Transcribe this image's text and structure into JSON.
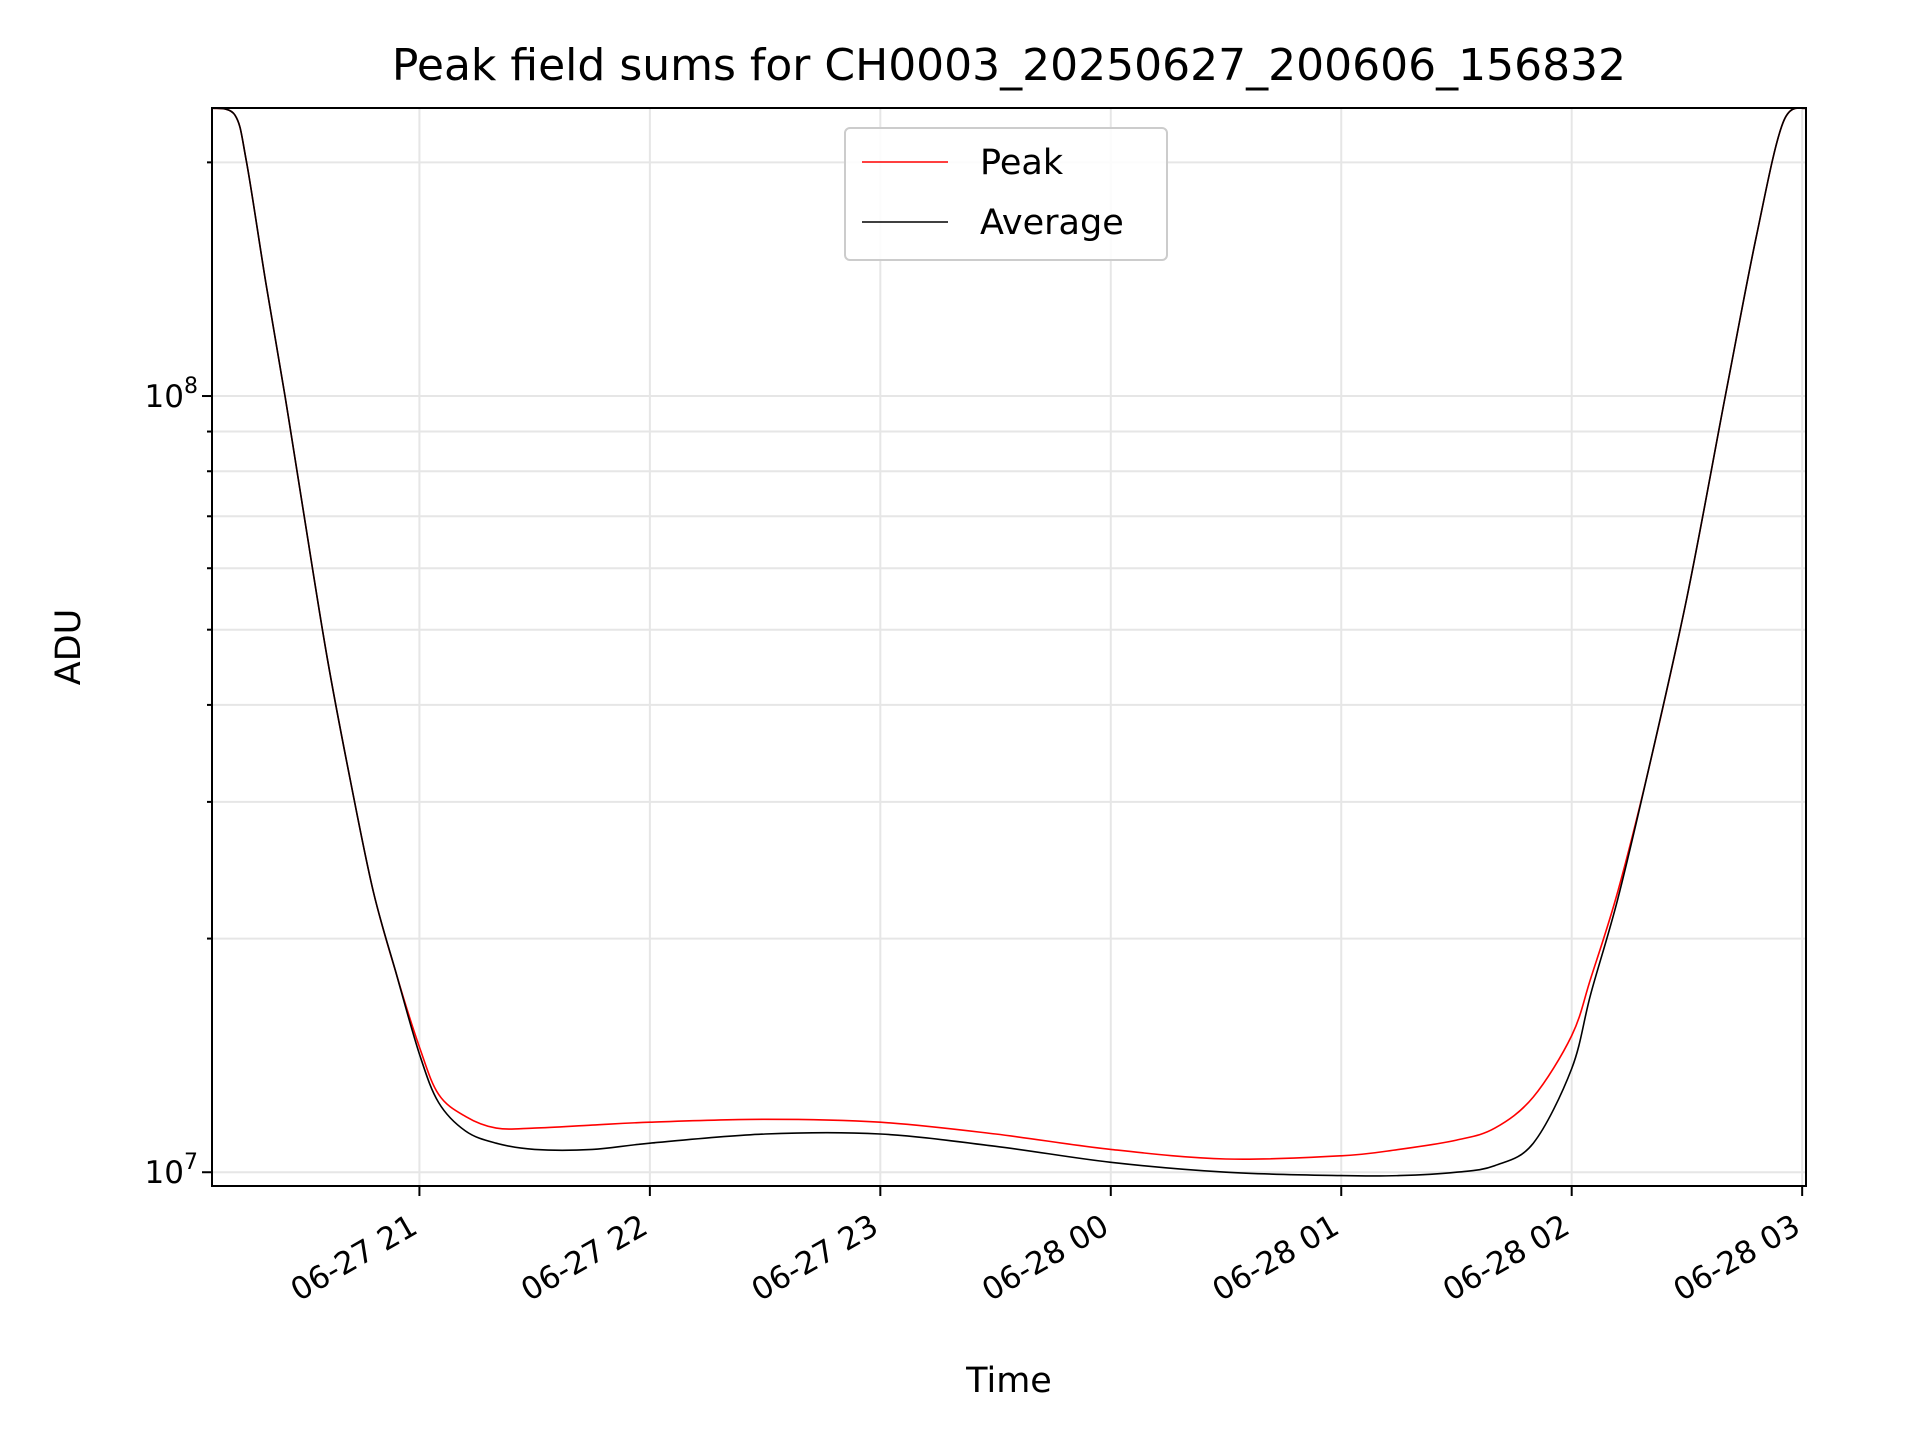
{
  "chart_data": {
    "type": "line",
    "title": "Peak field sums for CH0003_20250627_200606_156832",
    "xlabel": "Time",
    "ylabel": "ADU",
    "xscale": "time",
    "yscale": "log",
    "xlim": [
      "2025-06-27 20:06",
      "2025-06-28 03:01"
    ],
    "ylim": [
      9600000,
      235000000
    ],
    "x_ticks": [
      "06-27 21",
      "06-27 22",
      "06-27 23",
      "06-28 00",
      "06-28 01",
      "06-28 02",
      "06-28 03"
    ],
    "y_ticks": [
      {
        "base": "10",
        "exp": "7",
        "value": 10000000
      },
      {
        "base": "10",
        "exp": "8",
        "value": 100000000
      }
    ],
    "grid": true,
    "legend_position": "top-center",
    "series": [
      {
        "name": "Peak",
        "color": "#ff0000",
        "x": [
          "2025-06-27 20:06",
          "2025-06-27 20:12",
          "2025-06-27 20:15",
          "2025-06-27 20:20",
          "2025-06-27 20:25",
          "2025-06-27 20:30",
          "2025-06-27 20:36",
          "2025-06-27 20:42",
          "2025-06-27 20:48",
          "2025-06-27 20:54",
          "2025-06-27 21:00",
          "2025-06-27 21:05",
          "2025-06-27 21:12",
          "2025-06-27 21:20",
          "2025-06-27 21:30",
          "2025-06-27 21:45",
          "2025-06-27 22:00",
          "2025-06-27 22:30",
          "2025-06-27 23:00",
          "2025-06-27 23:30",
          "2025-06-28 00:00",
          "2025-06-28 00:30",
          "2025-06-28 01:00",
          "2025-06-28 01:15",
          "2025-06-28 01:30",
          "2025-06-28 01:40",
          "2025-06-28 01:50",
          "2025-06-28 02:00",
          "2025-06-28 02:05",
          "2025-06-28 02:12",
          "2025-06-28 02:20",
          "2025-06-28 02:30",
          "2025-06-28 02:40",
          "2025-06-28 02:48",
          "2025-06-28 02:55",
          "2025-06-28 03:01"
        ],
        "values": [
          235000000,
          230000000,
          200000000,
          140000000,
          100000000,
          70000000,
          46000000,
          32000000,
          23000000,
          18000000,
          14500000,
          12600000,
          11800000,
          11400000,
          11400000,
          11500000,
          11600000,
          11700000,
          11600000,
          11200000,
          10700000,
          10400000,
          10500000,
          10700000,
          11000000,
          11400000,
          12500000,
          15000000,
          17800000,
          23000000,
          33000000,
          55000000,
          100000000,
          160000000,
          225000000,
          235000000
        ]
      },
      {
        "name": "Average",
        "color": "#000000",
        "x": [
          "2025-06-27 20:06",
          "2025-06-27 20:12",
          "2025-06-27 20:15",
          "2025-06-27 20:20",
          "2025-06-27 20:25",
          "2025-06-27 20:30",
          "2025-06-27 20:36",
          "2025-06-27 20:42",
          "2025-06-27 20:48",
          "2025-06-27 20:54",
          "2025-06-27 21:00",
          "2025-06-27 21:05",
          "2025-06-27 21:12",
          "2025-06-27 21:20",
          "2025-06-27 21:30",
          "2025-06-27 21:45",
          "2025-06-27 22:00",
          "2025-06-27 22:30",
          "2025-06-27 23:00",
          "2025-06-27 23:30",
          "2025-06-28 00:00",
          "2025-06-28 00:30",
          "2025-06-28 01:00",
          "2025-06-28 01:15",
          "2025-06-28 01:30",
          "2025-06-28 01:40",
          "2025-06-28 01:50",
          "2025-06-28 02:00",
          "2025-06-28 02:05",
          "2025-06-28 02:12",
          "2025-06-28 02:20",
          "2025-06-28 02:30",
          "2025-06-28 02:40",
          "2025-06-28 02:48",
          "2025-06-28 02:55",
          "2025-06-28 03:01"
        ],
        "values": [
          235000000,
          230000000,
          200000000,
          140000000,
          100000000,
          70000000,
          46000000,
          32000000,
          23000000,
          18000000,
          14200000,
          12300000,
          11300000,
          10900000,
          10700000,
          10700000,
          10900000,
          11200000,
          11200000,
          10800000,
          10300000,
          10000000,
          9900000,
          9900000,
          10000000,
          10200000,
          10900000,
          13600000,
          17000000,
          22500000,
          33000000,
          55000000,
          100000000,
          160000000,
          225000000,
          235000000
        ]
      }
    ]
  }
}
